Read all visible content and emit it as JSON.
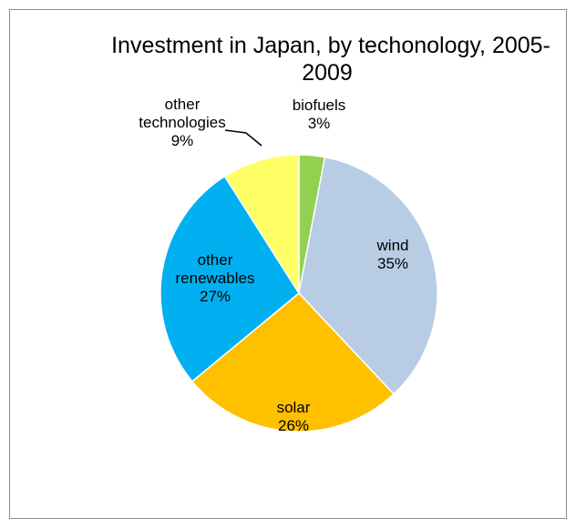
{
  "chart_data": {
    "type": "pie",
    "title_lines": [
      "Investment in Japan, by techonology, 2005-",
      "2009"
    ],
    "start_angle_deg": 0,
    "direction": "clockwise",
    "slices": [
      {
        "label": "biofuels",
        "value": 3,
        "value_label": "3%",
        "color": "#92d050"
      },
      {
        "label": "wind",
        "value": 35,
        "value_label": "35%",
        "color": "#b8cce4"
      },
      {
        "label": "solar",
        "value": 26,
        "value_label": "26%",
        "color": "#ffc000"
      },
      {
        "label": "other renewables",
        "value": 27,
        "value_label": "27%",
        "color": "#00b0f0"
      },
      {
        "label": "other technologies",
        "value": 9,
        "value_label": "9%",
        "color": "#ffff66"
      }
    ],
    "slice_border_color": "#ffffff"
  }
}
